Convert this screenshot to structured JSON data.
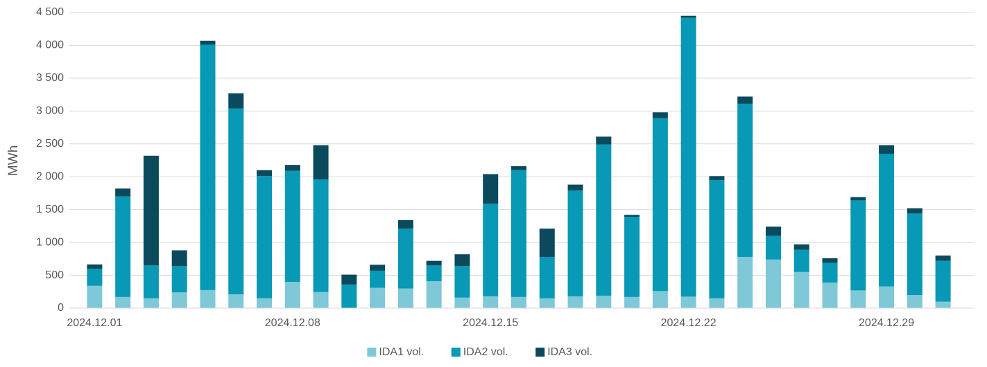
{
  "chart_data": {
    "type": "stacked_bar",
    "y_label": "MWh",
    "categories": [
      "2024.12.01",
      null,
      null,
      null,
      null,
      null,
      null,
      "2024.12.08",
      null,
      null,
      null,
      null,
      null,
      null,
      "2024.12.15",
      null,
      null,
      null,
      null,
      null,
      null,
      "2024.12.22",
      null,
      null,
      null,
      null,
      null,
      null,
      "2024.12.29",
      null,
      null
    ],
    "series": [
      {
        "name": "IDA1 vol.",
        "color": "#7ec8d8",
        "values": [
          340,
          170,
          150,
          240,
          275,
          210,
          150,
          400,
          245,
          0,
          310,
          300,
          410,
          160,
          180,
          170,
          150,
          180,
          190,
          170,
          260,
          175,
          150,
          780,
          740,
          550,
          390,
          270,
          330,
          200,
          100
        ]
      },
      {
        "name": "IDA2 vol.",
        "color": "#0799b5",
        "values": [
          260,
          1530,
          500,
          400,
          3735,
          2830,
          1860,
          1690,
          1715,
          360,
          260,
          910,
          240,
          480,
          1410,
          1930,
          630,
          1610,
          2300,
          1220,
          2630,
          4245,
          1800,
          2330,
          360,
          340,
          300,
          1370,
          2020,
          1240,
          620
        ]
      },
      {
        "name": "IDA3 vol.",
        "color": "#0a4a5c",
        "values": [
          65,
          120,
          1670,
          240,
          60,
          230,
          90,
          90,
          520,
          150,
          90,
          130,
          70,
          180,
          450,
          60,
          430,
          90,
          120,
          30,
          90,
          30,
          60,
          110,
          140,
          80,
          70,
          50,
          130,
          80,
          80
        ]
      }
    ],
    "ylim": [
      0,
      4500
    ],
    "yticks": [
      0,
      500,
      {
        "value": 1000,
        "label": "1 000"
      },
      {
        "value": 1500,
        "label": "1 500"
      },
      {
        "value": 2000,
        "label": "2 000"
      },
      {
        "value": 2500,
        "label": "2 500"
      },
      {
        "value": 3000,
        "label": "3 000"
      },
      {
        "value": 3500,
        "label": "3 500"
      },
      {
        "value": 4000,
        "label": "4 000"
      },
      {
        "value": 4500,
        "label": "4 500"
      }
    ],
    "grid": true,
    "legend": "bottom"
  }
}
